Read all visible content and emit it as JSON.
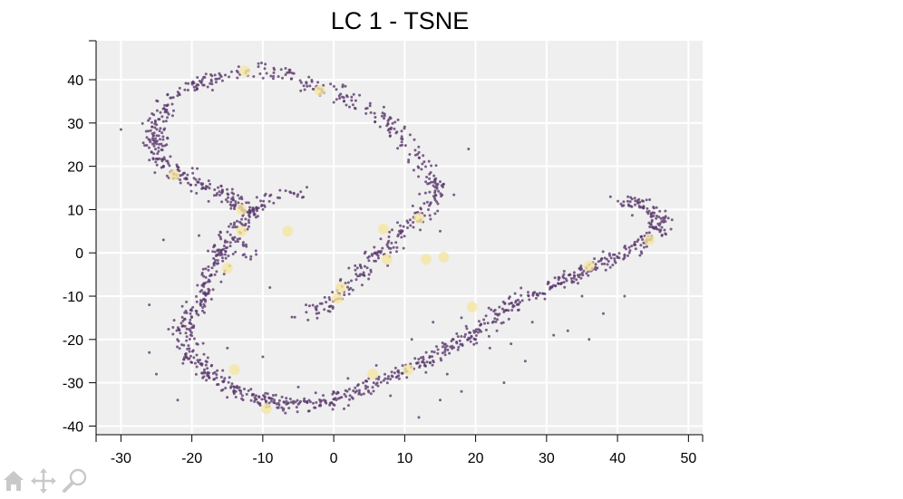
{
  "chart_data": {
    "type": "scatter",
    "title": "LC 1 - TSNE",
    "xlabel": "",
    "ylabel": "",
    "xlim": [
      -33.5,
      52
    ],
    "ylim": [
      -42,
      49
    ],
    "x_ticks": [
      -30,
      -20,
      -10,
      0,
      10,
      20,
      30,
      40,
      50
    ],
    "y_ticks": [
      -40,
      -30,
      -20,
      -10,
      0,
      10,
      20,
      30,
      40
    ],
    "grid": true,
    "background": "#efefef",
    "grid_color": "#ffffff",
    "series": [
      {
        "color": "#5b3a6e",
        "marker": "dot",
        "curves": [
          {
            "path": [
              [
                -25,
                29
              ],
              [
                -24,
                34
              ],
              [
                -22,
                37
              ],
              [
                -18,
                40
              ],
              [
                -14,
                41.5
              ],
              [
                -10,
                42
              ],
              [
                -7,
                41.5
              ],
              [
                -4,
                39
              ],
              [
                -2,
                38
              ],
              [
                1,
                36
              ],
              [
                4,
                34
              ],
              [
                7,
                31
              ],
              [
                9,
                28
              ],
              [
                11,
                25
              ],
              [
                12,
                22
              ],
              [
                13.5,
                19
              ],
              [
                14.5,
                15
              ],
              [
                14,
                11
              ],
              [
                12,
                8
              ],
              [
                10,
                5
              ],
              [
                8,
                2
              ],
              [
                6,
                -1
              ],
              [
                4,
                -4
              ],
              [
                2,
                -8
              ],
              [
                0,
                -11
              ],
              [
                -2,
                -13
              ],
              [
                -4,
                -15
              ]
            ],
            "count": 460,
            "spread": 1.3
          },
          {
            "path": [
              [
                -25,
                29
              ],
              [
                -25,
                25
              ],
              [
                -24,
                21
              ],
              [
                -22,
                18
              ],
              [
                -20,
                16.5
              ],
              [
                -18,
                15
              ],
              [
                -15,
                13
              ],
              [
                -13,
                11
              ],
              [
                -12,
                9
              ],
              [
                -13,
                7
              ],
              [
                -15,
                3
              ],
              [
                -16,
                -1
              ],
              [
                -17,
                -4
              ],
              [
                -18,
                -8
              ],
              [
                -19,
                -12
              ],
              [
                -21,
                -16
              ],
              [
                -21,
                -20
              ],
              [
                -20,
                -24
              ],
              [
                -18,
                -27
              ],
              [
                -16,
                -30
              ],
              [
                -13,
                -32
              ],
              [
                -10,
                -34
              ],
              [
                -7,
                -35
              ],
              [
                -3,
                -35
              ],
              [
                1,
                -33.5
              ],
              [
                5,
                -31
              ],
              [
                9,
                -28
              ],
              [
                13,
                -25
              ],
              [
                17,
                -21
              ],
              [
                21,
                -17
              ],
              [
                25,
                -12
              ],
              [
                29,
                -9
              ],
              [
                33,
                -6
              ],
              [
                37,
                -3
              ],
              [
                41,
                0
              ],
              [
                44,
                3
              ],
              [
                46,
                6
              ],
              [
                45.5,
                9
              ],
              [
                43,
                11.5
              ],
              [
                40,
                13
              ]
            ],
            "count": 1100,
            "spread": 1.25
          },
          {
            "path": [
              [
                -12,
                9
              ],
              [
                -10,
                12
              ],
              [
                -8,
                13.5
              ],
              [
                -6,
                14
              ],
              [
                -4,
                13.5
              ]
            ],
            "count": 45,
            "spread": 0.9
          },
          {
            "path": [
              [
                -13,
                4
              ],
              [
                -12,
                1
              ],
              [
                -12,
                -2
              ]
            ],
            "count": 12,
            "spread": 1.2
          }
        ],
        "scatter_points": [
          [
            -30,
            28.5
          ],
          [
            -24,
            3
          ],
          [
            -19,
            4
          ],
          [
            -26,
            -12
          ],
          [
            -25,
            -28
          ],
          [
            -15,
            -22
          ],
          [
            -10,
            -24
          ],
          [
            -9,
            -8
          ],
          [
            19,
            24
          ],
          [
            15,
            5
          ],
          [
            9,
            7
          ],
          [
            5,
            -5
          ],
          [
            18,
            -15
          ],
          [
            20,
            -20
          ],
          [
            22,
            -22
          ],
          [
            25,
            -21
          ],
          [
            27,
            -25
          ],
          [
            24,
            -30
          ],
          [
            18,
            -32
          ],
          [
            15,
            -34
          ],
          [
            12,
            -38
          ],
          [
            33,
            -18
          ],
          [
            36,
            -20
          ],
          [
            38,
            -14
          ],
          [
            41,
            -10
          ],
          [
            28,
            -16
          ],
          [
            31,
            -19
          ],
          [
            14,
            -16
          ],
          [
            11,
            -20
          ],
          [
            6,
            -26
          ],
          [
            35,
            -10
          ],
          [
            23,
            -18
          ],
          [
            16,
            -28
          ],
          [
            8,
            -33
          ],
          [
            2,
            -29
          ],
          [
            -5,
            -31
          ],
          [
            -22,
            -34
          ],
          [
            -26,
            -23
          ]
        ]
      },
      {
        "color": "#f5e6a3",
        "marker": "large-circle",
        "points": [
          [
            -12.5,
            42
          ],
          [
            -2,
            37.5
          ],
          [
            -22.5,
            18
          ],
          [
            -13,
            10
          ],
          [
            -13,
            5
          ],
          [
            -6.5,
            5
          ],
          [
            7,
            5.5
          ],
          [
            12,
            8
          ],
          [
            7.5,
            -1.5
          ],
          [
            13,
            -1.5
          ],
          [
            15.5,
            -1
          ],
          [
            -15,
            -3.5
          ],
          [
            1,
            -8
          ],
          [
            0.5,
            -10.5
          ],
          [
            19.5,
            -12.5
          ],
          [
            36,
            -3
          ],
          [
            44.5,
            3
          ],
          [
            -14,
            -27
          ],
          [
            5.5,
            -28
          ],
          [
            10.5,
            -27
          ],
          [
            -9.5,
            -36
          ]
        ]
      }
    ]
  }
}
